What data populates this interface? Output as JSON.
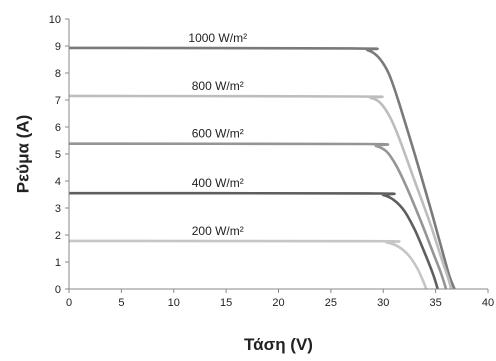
{
  "chart_data": {
    "type": "line",
    "title": "",
    "xlabel": "Τάση (V)",
    "ylabel": "Ρεύμα (A)",
    "xlim": [
      0,
      40
    ],
    "ylim": [
      0,
      10
    ],
    "xticks": [
      0,
      5,
      10,
      15,
      20,
      25,
      30,
      35,
      40
    ],
    "yticks": [
      0,
      1,
      2,
      3,
      4,
      5,
      6,
      7,
      8,
      9,
      10
    ],
    "grid": false,
    "legend": "inline-labels",
    "series": [
      {
        "name": "1000 W/m²",
        "color": "#7a7a7a",
        "points": [
          [
            0,
            8.93
          ],
          [
            27,
            8.91
          ],
          [
            28.5,
            8.85
          ],
          [
            29.5,
            8.6
          ],
          [
            30.5,
            8.0
          ],
          [
            31.5,
            6.9
          ],
          [
            33,
            5.0
          ],
          [
            34.5,
            3.0
          ],
          [
            35.5,
            1.6
          ],
          [
            36.3,
            0.5
          ],
          [
            36.8,
            0
          ]
        ]
      },
      {
        "name": "800 W/m²",
        "color": "#bdbdbd",
        "points": [
          [
            0,
            7.15
          ],
          [
            27.5,
            7.13
          ],
          [
            28.8,
            7.08
          ],
          [
            29.7,
            6.9
          ],
          [
            30.6,
            6.4
          ],
          [
            31.5,
            5.6
          ],
          [
            33,
            4.0
          ],
          [
            34.5,
            2.4
          ],
          [
            35.5,
            1.2
          ],
          [
            36.2,
            0.4
          ],
          [
            36.5,
            0
          ]
        ]
      },
      {
        "name": "600 W/m²",
        "color": "#959595",
        "points": [
          [
            0,
            5.38
          ],
          [
            28,
            5.37
          ],
          [
            29.3,
            5.3
          ],
          [
            30.3,
            5.1
          ],
          [
            31.2,
            4.6
          ],
          [
            32.2,
            3.8
          ],
          [
            33.5,
            2.6
          ],
          [
            34.7,
            1.4
          ],
          [
            35.5,
            0.6
          ],
          [
            36,
            0
          ]
        ]
      },
      {
        "name": "400 W/m²",
        "color": "#5e5e5e",
        "points": [
          [
            0,
            3.55
          ],
          [
            28.5,
            3.54
          ],
          [
            30,
            3.48
          ],
          [
            31,
            3.3
          ],
          [
            32,
            2.9
          ],
          [
            33,
            2.2
          ],
          [
            34,
            1.3
          ],
          [
            34.8,
            0.5
          ],
          [
            35.2,
            0
          ]
        ]
      },
      {
        "name": "200 W/m²",
        "color": "#c6c6c6",
        "points": [
          [
            0,
            1.78
          ],
          [
            29,
            1.77
          ],
          [
            30.3,
            1.73
          ],
          [
            31.3,
            1.6
          ],
          [
            32.3,
            1.3
          ],
          [
            33.2,
            0.8
          ],
          [
            33.8,
            0.3
          ],
          [
            34.1,
            0
          ]
        ]
      }
    ]
  }
}
